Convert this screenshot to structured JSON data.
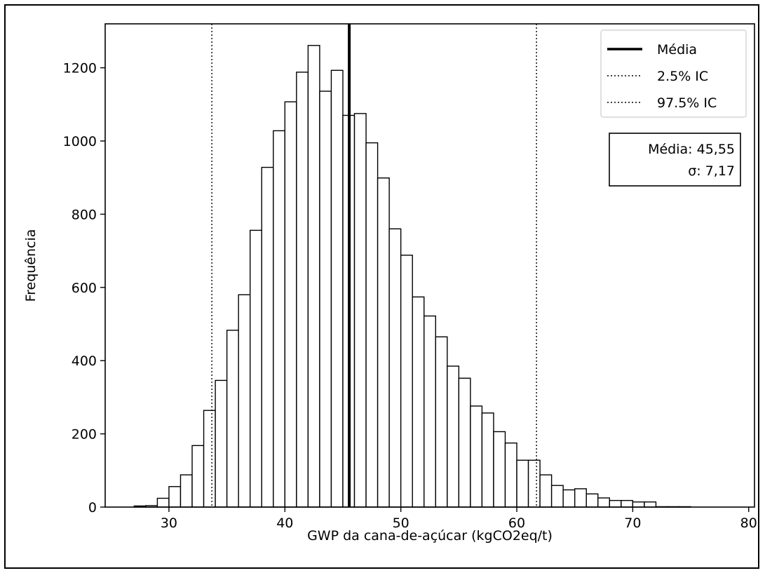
{
  "chart_data": {
    "type": "histogram",
    "xlabel": "GWP da cana-de-açúcar (kgCO2eq/t)",
    "ylabel": "Frequência",
    "xlim": [
      24.5,
      80.5
    ],
    "ylim": [
      0,
      1320
    ],
    "xticks": [
      30,
      40,
      50,
      60,
      70,
      80
    ],
    "yticks": [
      0,
      200,
      400,
      600,
      800,
      1000,
      1200
    ],
    "bin_start": 27.0,
    "bin_width": 1.0,
    "values": [
      3,
      4,
      24,
      56,
      88,
      168,
      264,
      346,
      483,
      580,
      756,
      928,
      1028,
      1107,
      1188,
      1261,
      1136,
      1193,
      1070,
      1075,
      995,
      899,
      760,
      688,
      574,
      522,
      465,
      385,
      352,
      276,
      257,
      206,
      175,
      128,
      128,
      88,
      59,
      47,
      50,
      36,
      25,
      18,
      18,
      14,
      14,
      1,
      1,
      1,
      0,
      0
    ],
    "mean": 45.55,
    "ci_low": 33.7,
    "ci_high": 61.7,
    "legend": {
      "position": "top-right",
      "entries": [
        {
          "label": "Média",
          "style": "solid"
        },
        {
          "label": "2.5% IC",
          "style": "dotted"
        },
        {
          "label": "97.5% IC",
          "style": "dotted"
        }
      ]
    },
    "stats_box": {
      "line1": "Média: 45,55",
      "line2": "σ: 7,17"
    },
    "grid": false,
    "colors": {
      "bar_fill": "#ffffff",
      "bar_edge": "#000000",
      "lines": "#000000"
    }
  }
}
